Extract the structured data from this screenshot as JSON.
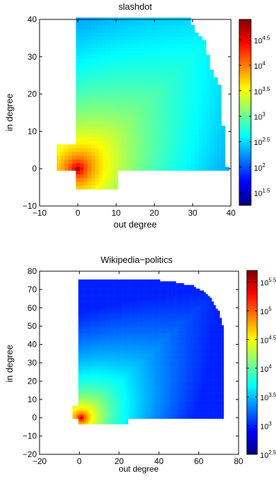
{
  "chart_data": [
    {
      "type": "heatmap",
      "title": "slashdot",
      "xlabel": "out degree",
      "ylabel": "in degree",
      "xlim": [
        -10,
        40
      ],
      "ylim": [
        -10,
        40
      ],
      "xticks": [
        "−10",
        "0",
        "10",
        "20",
        "30",
        "40"
      ],
      "yticks": [
        "−10",
        "0",
        "10",
        "20",
        "30",
        "40"
      ],
      "colormap": "jet",
      "colorbar": {
        "range_log10": [
          1.25,
          4.9
        ],
        "ticks": [
          {
            "base": "10",
            "exp": "1.5"
          },
          {
            "base": "10",
            "exp": "2"
          },
          {
            "base": "10",
            "exp": "2.5"
          },
          {
            "base": "10",
            "exp": "3"
          },
          {
            "base": "10",
            "exp": "3.5"
          },
          {
            "base": "10",
            "exp": "4"
          },
          {
            "base": "10",
            "exp": "4.5"
          }
        ]
      },
      "data_extent": {
        "x": [
          -5,
          40
        ],
        "y": [
          -5,
          40
        ]
      },
      "peak": {
        "x": 0,
        "y": 0,
        "log10_value": 4.8
      },
      "frontier": [
        [
          0,
          40
        ],
        [
          29,
          40
        ],
        [
          31,
          36
        ],
        [
          33,
          34
        ],
        [
          34,
          30
        ],
        [
          35,
          26
        ],
        [
          37,
          22
        ],
        [
          39,
          0
        ]
      ]
    },
    {
      "type": "heatmap",
      "title": "Wikipedia−politics",
      "xlabel": "out degree",
      "ylabel": "in degree",
      "xlim": [
        -20,
        80
      ],
      "ylim": [
        -20,
        80
      ],
      "xticks": [
        "−20",
        "0",
        "20",
        "40",
        "60",
        "80"
      ],
      "yticks": [
        "−20",
        "−10",
        "0",
        "10",
        "20",
        "30",
        "40",
        "50",
        "60",
        "70",
        "80"
      ],
      "colormap": "jet",
      "colorbar": {
        "range_log10": [
          2.5,
          5.7
        ],
        "ticks": [
          {
            "base": "10",
            "exp": "2.5"
          },
          {
            "base": "10",
            "exp": "3"
          },
          {
            "base": "10",
            "exp": "3.5"
          },
          {
            "base": "10",
            "exp": "4"
          },
          {
            "base": "10",
            "exp": "4.5"
          },
          {
            "base": "10",
            "exp": "5"
          },
          {
            "base": "10",
            "exp": "5.5"
          }
        ]
      },
      "data_extent": {
        "x": [
          -3,
          72
        ],
        "y": [
          -3,
          75
        ]
      },
      "peak": {
        "x": 1,
        "y": 0,
        "log10_value": 5.6
      },
      "frontier": [
        [
          0,
          75
        ],
        [
          40,
          75
        ],
        [
          48,
          74
        ],
        [
          57,
          72
        ],
        [
          62,
          69
        ],
        [
          66,
          65
        ],
        [
          70,
          58
        ],
        [
          72,
          50
        ],
        [
          72,
          0
        ]
      ]
    }
  ]
}
